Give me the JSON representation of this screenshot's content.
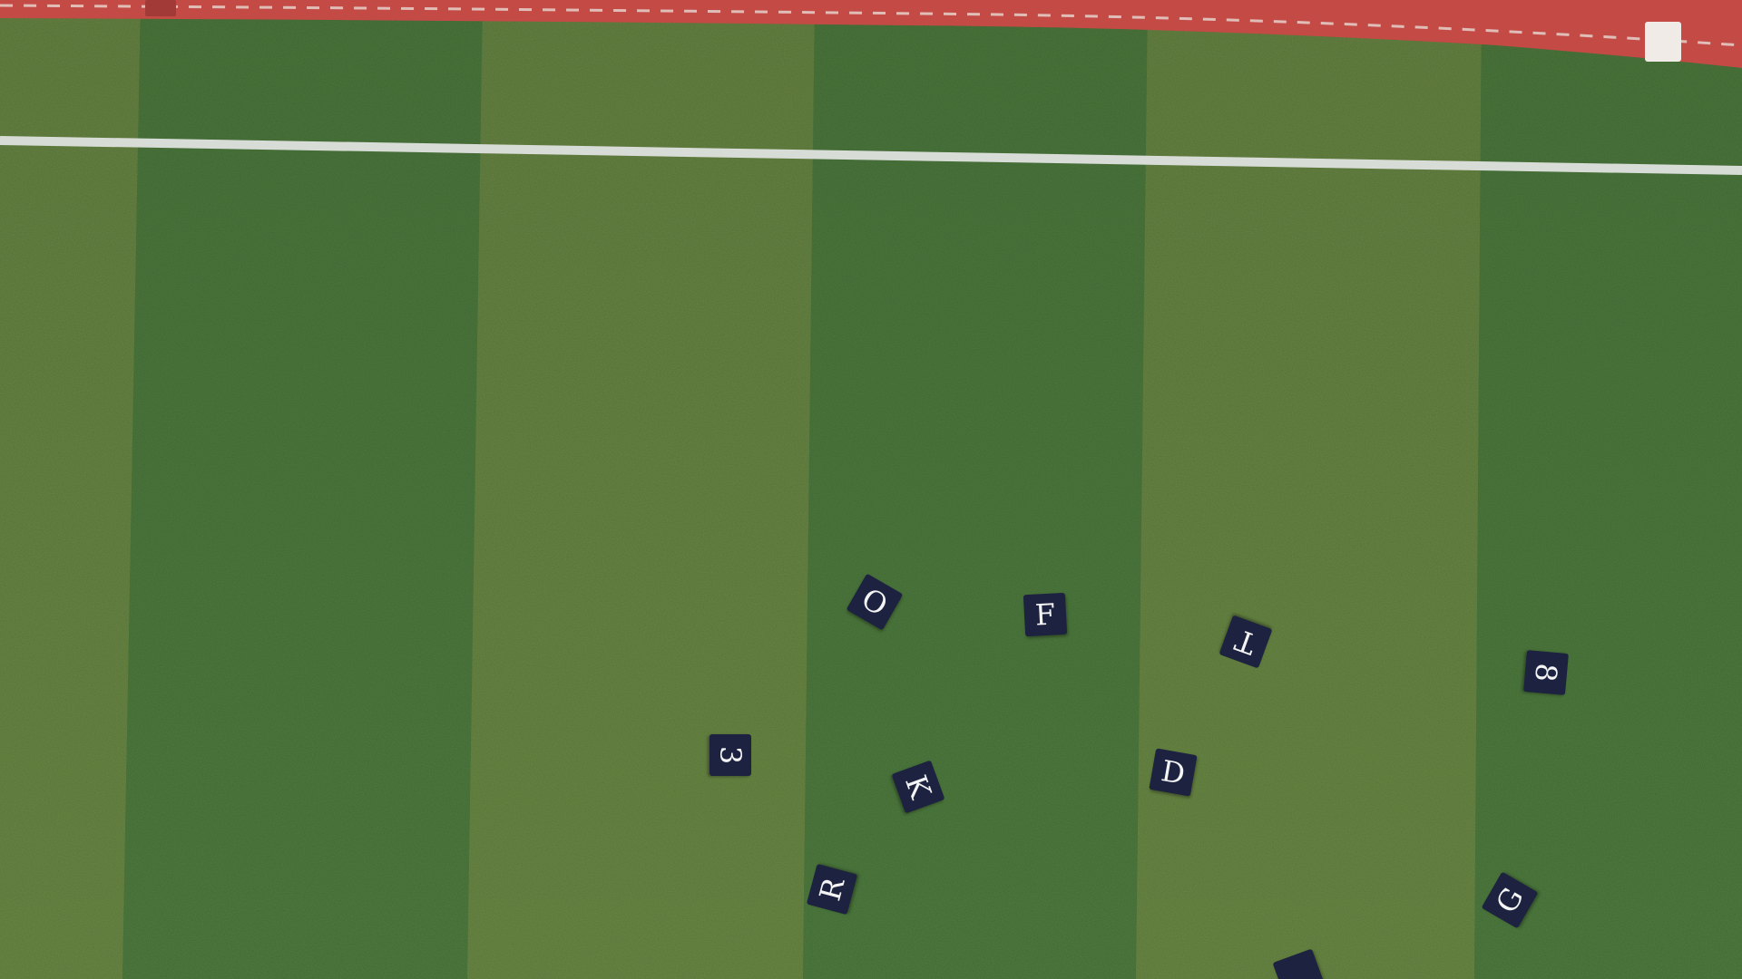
{
  "scene": {
    "subject": "aerial view of artificial turf field with letter tiles",
    "colors": {
      "track": "#c44a45",
      "track_line": "#e9d9d4",
      "stripe_light": "#6b8a45",
      "stripe_dark": "#4f7d3f",
      "boundary_line": "#d8dcd6",
      "tile": "#1c2240",
      "tile_text": "#f4f4f4"
    }
  },
  "tiles": [
    {
      "id": "O",
      "char": "O",
      "rotation_deg": 30
    },
    {
      "id": "F",
      "char": "F",
      "rotation_deg": -3
    },
    {
      "id": "T",
      "char": "T",
      "rotation_deg": 200
    },
    {
      "id": "8",
      "char": "8",
      "rotation_deg": 95
    },
    {
      "id": "3",
      "char": "3",
      "rotation_deg": 90
    },
    {
      "id": "K",
      "char": "K",
      "rotation_deg": 70
    },
    {
      "id": "D",
      "char": "D",
      "rotation_deg": 10
    },
    {
      "id": "R",
      "char": "R",
      "rotation_deg": -75
    },
    {
      "id": "G",
      "char": "G",
      "rotation_deg": -60
    },
    {
      "id": "partial",
      "char": "",
      "rotation_deg": -20
    }
  ]
}
